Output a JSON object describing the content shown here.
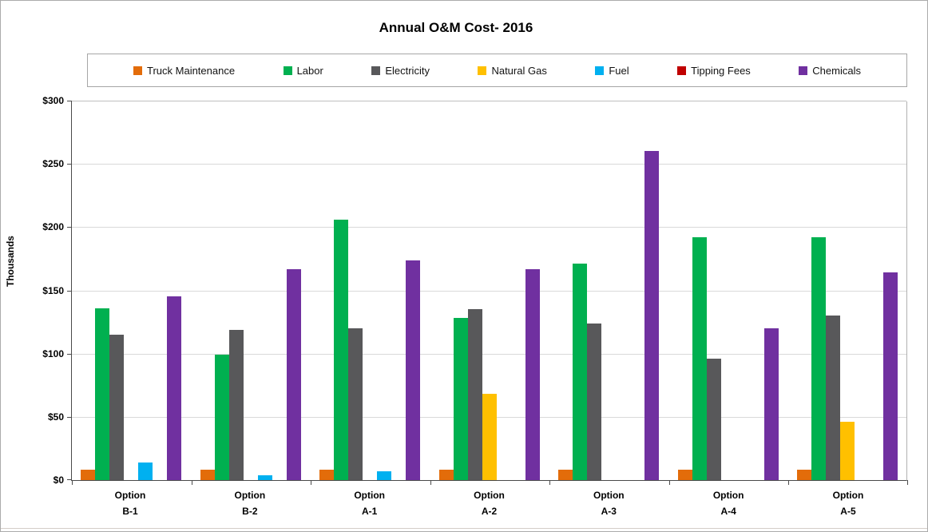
{
  "figure": {
    "background": "#FFFFFF",
    "border_color": "#ABABAB"
  },
  "colors": {
    "gridline": "#D9D9D9",
    "axis": "#4A4A4A",
    "frame": "#B0B0B0",
    "legend_border": "#A6A6A6"
  },
  "chart_data": {
    "type": "bar",
    "title": "Annual O&M Cost- 2016",
    "ylabel": "Thousands",
    "xlabel": "",
    "ylim": [
      0,
      300
    ],
    "ytick_step": 50,
    "ytick_labels": [
      "$0",
      "$50",
      "$100",
      "$150",
      "$200",
      "$250",
      "$300"
    ],
    "grid": true,
    "legend_position": "top",
    "categories": [
      "Option\nB-1",
      "Option\nB-2",
      "Option\nA-1",
      "Option\nA-2",
      "Option\nA-3",
      "Option\nA-4",
      "Option\nA-5"
    ],
    "series": [
      {
        "name": "Truck Maintenance",
        "color": "#E36C0A",
        "values": [
          8,
          8,
          8,
          8,
          8,
          8,
          8
        ]
      },
      {
        "name": "Labor",
        "color": "#00B050",
        "values": [
          136,
          99,
          206,
          128,
          171,
          192,
          192
        ]
      },
      {
        "name": "Electricity",
        "color": "#58585A",
        "values": [
          115,
          119,
          120,
          135,
          124,
          96,
          130
        ]
      },
      {
        "name": "Natural Gas",
        "color": "#FFC000",
        "values": [
          0,
          0,
          0,
          68,
          0,
          0,
          46
        ]
      },
      {
        "name": "Fuel",
        "color": "#00B0F0",
        "values": [
          14,
          4,
          7,
          0,
          0,
          0,
          0
        ]
      },
      {
        "name": "Tipping Fees",
        "color": "#C00000",
        "values": [
          0,
          0,
          0,
          0,
          0,
          0,
          0
        ]
      },
      {
        "name": "Chemicals",
        "color": "#7030A0",
        "values": [
          145,
          167,
          174,
          167,
          260,
          120,
          164
        ]
      }
    ]
  }
}
